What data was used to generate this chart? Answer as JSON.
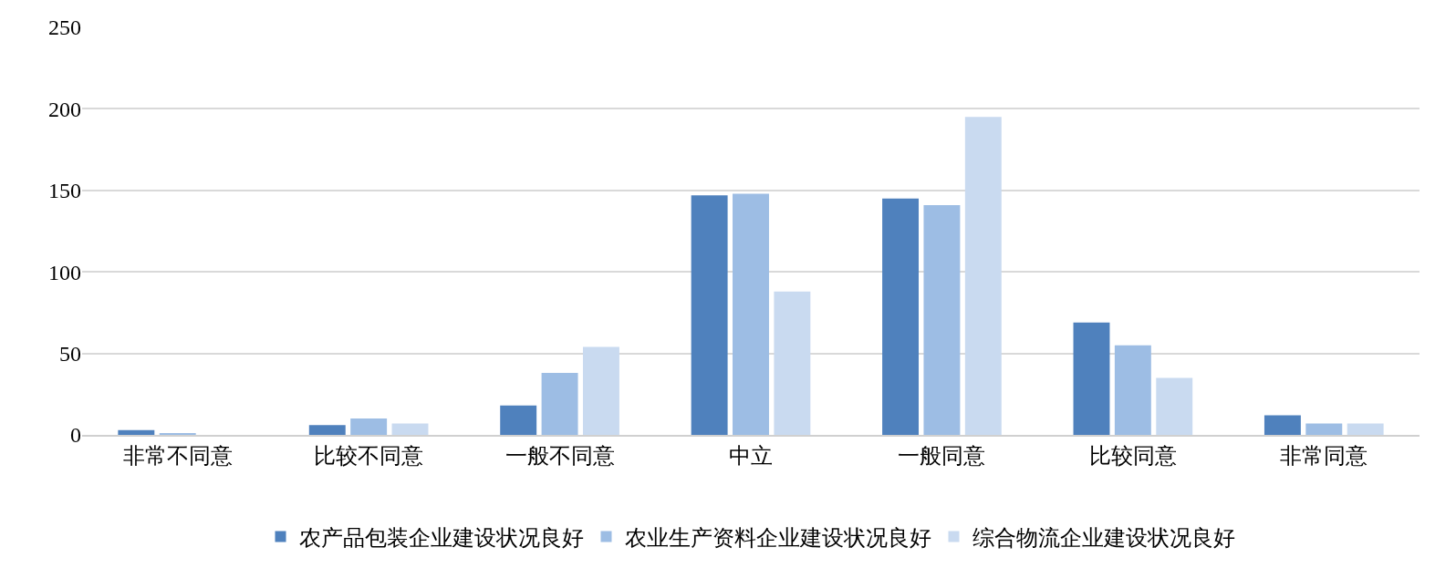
{
  "chart_data": {
    "type": "bar",
    "categories": [
      "非常不同意",
      "比较不同意",
      "一般不同意",
      "中立",
      "一般同意",
      "比较同意",
      "非常同意"
    ],
    "series": [
      {
        "name": "农产品包装企业建设状况良好",
        "color": "#4f81bd",
        "values": [
          3,
          6,
          18,
          147,
          145,
          69,
          12
        ]
      },
      {
        "name": "农业生产资料企业建设状况良好",
        "color": "#9dbde4",
        "values": [
          1,
          10,
          38,
          148,
          141,
          55,
          7
        ]
      },
      {
        "name": "综合物流企业建设状况良好",
        "color": "#c9daf0",
        "values": [
          0,
          7,
          54,
          88,
          195,
          35,
          7
        ]
      }
    ],
    "ylim": [
      0,
      250
    ],
    "yticks": [
      0,
      50,
      100,
      150,
      200,
      250
    ],
    "grid": "y",
    "legend": "bottom"
  }
}
